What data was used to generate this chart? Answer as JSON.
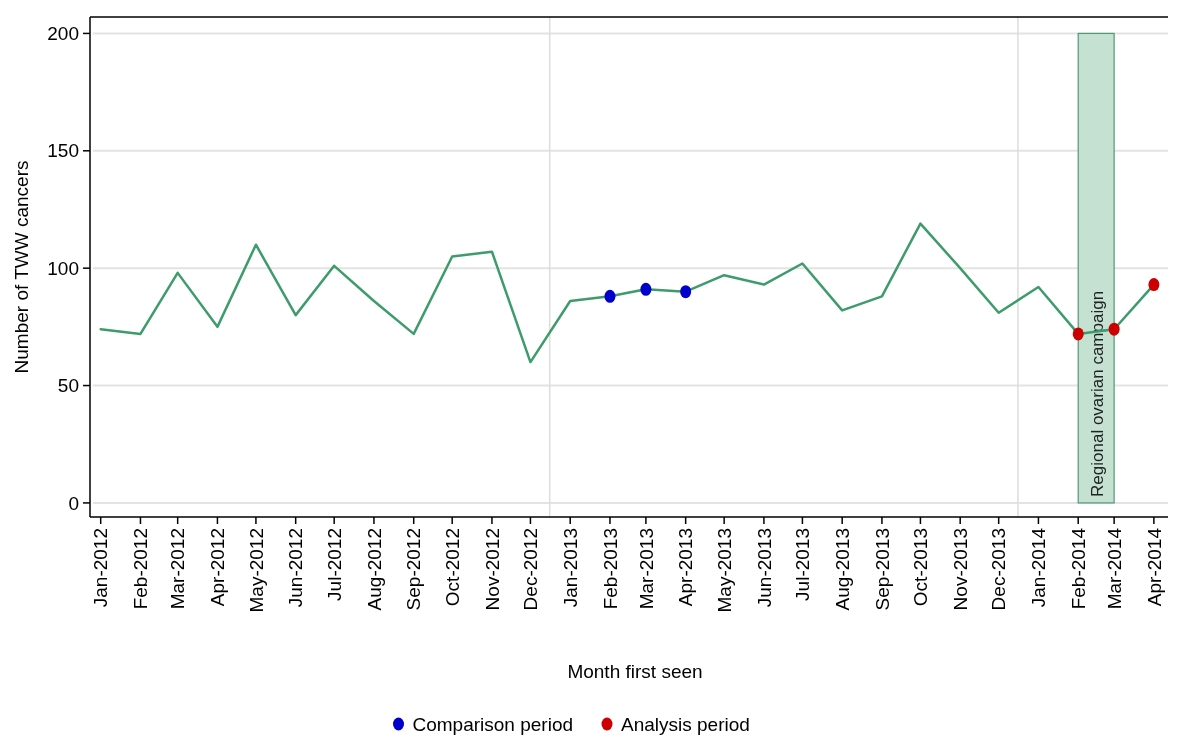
{
  "chart_data": {
    "type": "line",
    "xlabel": "Month first seen",
    "ylabel": "Number of TWW cancers",
    "xlim": [
      "2011-12-26",
      "2014-04-12"
    ],
    "ylim": [
      -6,
      207
    ],
    "yticks": [
      0,
      50,
      100,
      150,
      200
    ],
    "xticks": [
      {
        "value": "2012-01",
        "label": "Jan-2012"
      },
      {
        "value": "2012-02",
        "label": "Feb-2012"
      },
      {
        "value": "2012-03",
        "label": "Mar-2012"
      },
      {
        "value": "2012-04",
        "label": "Apr-2012"
      },
      {
        "value": "2012-05",
        "label": "May-2012"
      },
      {
        "value": "2012-06",
        "label": "Jun-2012"
      },
      {
        "value": "2012-07",
        "label": "Jul-2012"
      },
      {
        "value": "2012-08",
        "label": "Aug-2012"
      },
      {
        "value": "2012-09",
        "label": "Sep-2012"
      },
      {
        "value": "2012-10",
        "label": "Oct-2012"
      },
      {
        "value": "2012-11",
        "label": "Nov-2012"
      },
      {
        "value": "2012-12",
        "label": "Dec-2012"
      },
      {
        "value": "2013-01",
        "label": "Jan-2013"
      },
      {
        "value": "2013-02",
        "label": "Feb-2013"
      },
      {
        "value": "2013-03",
        "label": "Mar-2013"
      },
      {
        "value": "2013-04",
        "label": "Apr-2013"
      },
      {
        "value": "2013-05",
        "label": "May-2013"
      },
      {
        "value": "2013-06",
        "label": "Jun-2013"
      },
      {
        "value": "2013-07",
        "label": "Jul-2013"
      },
      {
        "value": "2013-08",
        "label": "Aug-2013"
      },
      {
        "value": "2013-09",
        "label": "Sep-2013"
      },
      {
        "value": "2013-10",
        "label": "Oct-2013"
      },
      {
        "value": "2013-11",
        "label": "Nov-2013"
      },
      {
        "value": "2013-12",
        "label": "Dec-2013"
      },
      {
        "value": "2014-01",
        "label": "Jan-2014"
      },
      {
        "value": "2014-02",
        "label": "Feb-2014"
      },
      {
        "value": "2014-03",
        "label": "Mar-2014"
      },
      {
        "value": "2014-04",
        "label": "Apr-2014"
      }
    ],
    "x": [
      "2012-01",
      "2012-02",
      "2012-03",
      "2012-04",
      "2012-05",
      "2012-06",
      "2012-07",
      "2012-08",
      "2012-09",
      "2012-10",
      "2012-11",
      "2012-12",
      "2013-01",
      "2013-02",
      "2013-03",
      "2013-04",
      "2013-05",
      "2013-06",
      "2013-07",
      "2013-08",
      "2013-09",
      "2013-10",
      "2013-11",
      "2013-12",
      "2014-01",
      "2014-02",
      "2014-03",
      "2014-04"
    ],
    "series": [
      {
        "color": "#3d9b6c",
        "marker": "none",
        "values": [
          74,
          72,
          98,
          75,
          110,
          80,
          101,
          86,
          72,
          105,
          107,
          60,
          86,
          88,
          91,
          90,
          97,
          93,
          102,
          82,
          88,
          119,
          100,
          81,
          92,
          72,
          74,
          93
        ]
      },
      {
        "type": "scatter",
        "marker": "circle",
        "name": "Comparison period",
        "color": "#0000cc",
        "x": [
          "2013-02",
          "2013-03",
          "2013-04"
        ],
        "values": [
          88,
          91,
          90
        ]
      },
      {
        "type": "scatter",
        "marker": "circle",
        "name": "Analysis period",
        "color": "#cc0000",
        "x": [
          "2014-02",
          "2014-03",
          "2014-04"
        ],
        "values": [
          72,
          74,
          93
        ]
      }
    ],
    "bands": [
      {
        "axis": "x",
        "from": "2014-02",
        "to": "2014-03",
        "label": "Regional ovarian campaign",
        "color": "#c4e1d2"
      }
    ],
    "ref_lines": [
      {
        "axis": "x",
        "value": "2012-12-16",
        "color": "#dddddd"
      },
      {
        "axis": "x",
        "value": "2013-12-16",
        "color": "#dddddd"
      }
    ],
    "grid": "y",
    "legend": "bottom",
    "line_style": "solid"
  }
}
